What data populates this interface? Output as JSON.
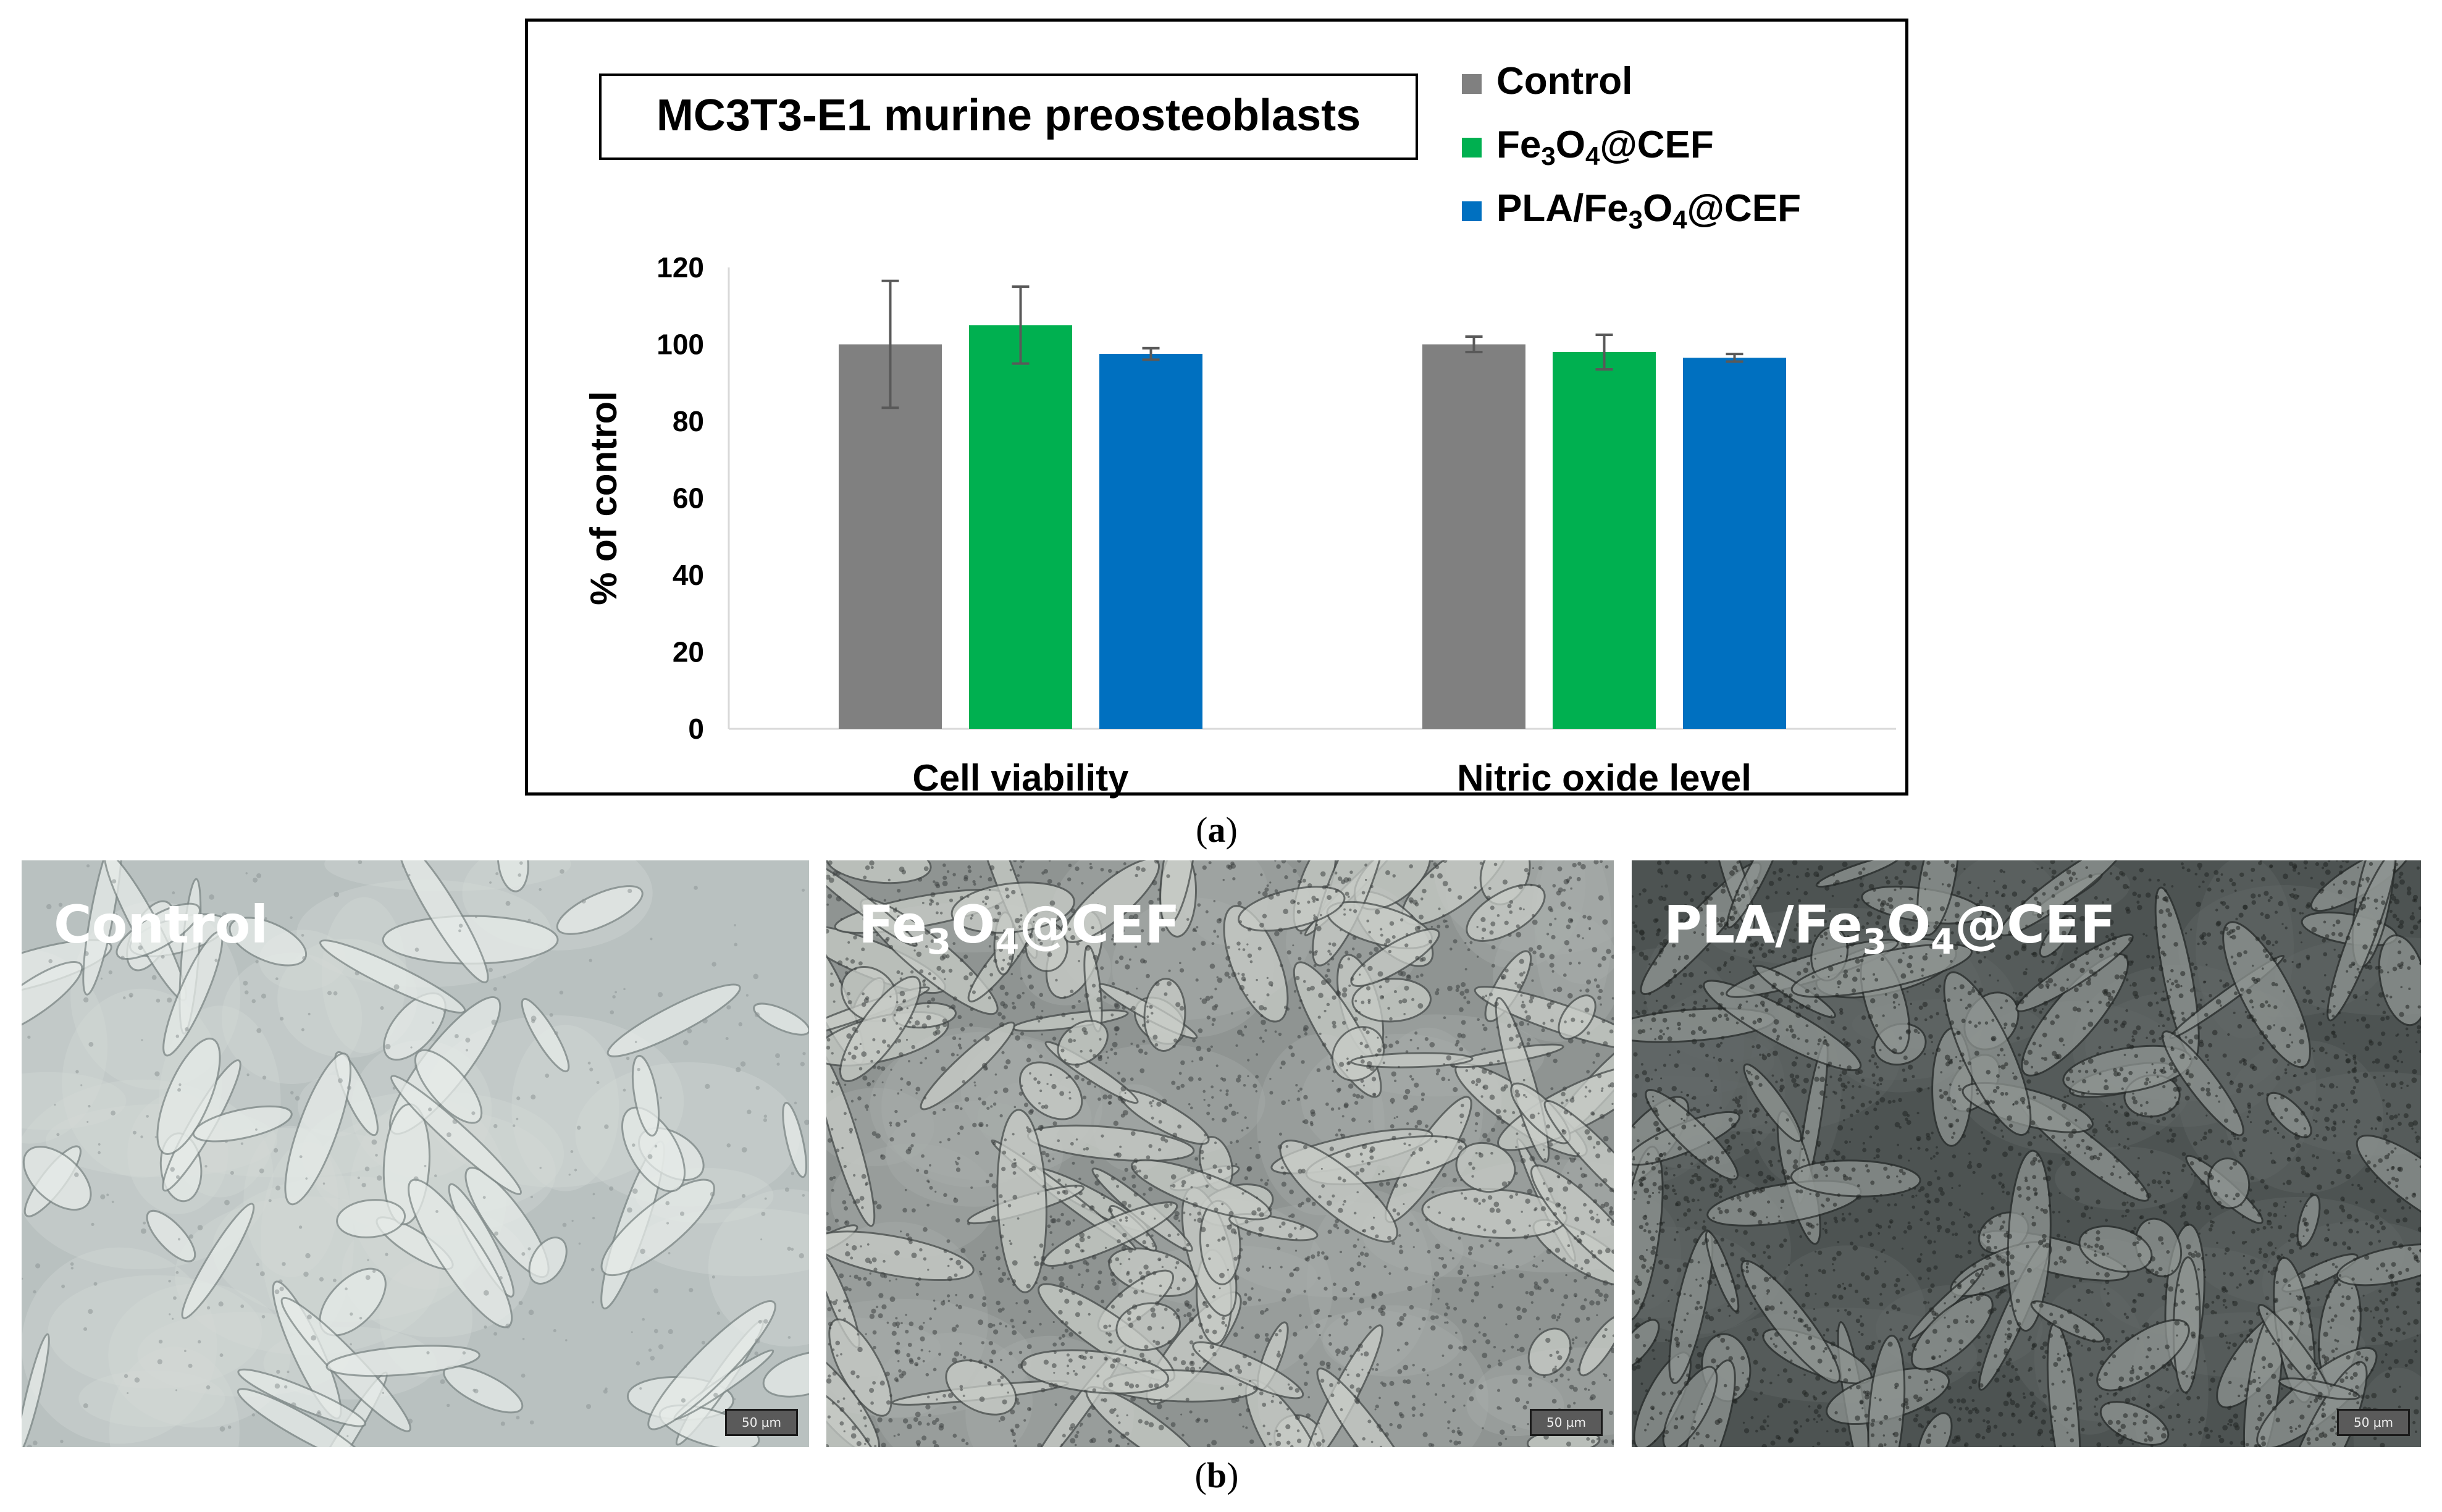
{
  "panel_a": {
    "caption_open": "(",
    "caption_letter": "a",
    "caption_close": ")"
  },
  "panel_b": {
    "caption_open": "(",
    "caption_letter": "b",
    "caption_close": ")",
    "images": [
      {
        "label_parts": [
          "Control"
        ],
        "scale_label": "50 µm",
        "tone": "light"
      },
      {
        "label_parts": [
          "Fe",
          "3",
          "O",
          "4",
          "@CEF"
        ],
        "scale_label": "50 µm",
        "tone": "medium"
      },
      {
        "label_parts": [
          "PLA/Fe",
          "3",
          "O",
          "4",
          "@CEF"
        ],
        "scale_label": "50 µm",
        "tone": "dark"
      }
    ]
  },
  "chart_data": {
    "type": "bar",
    "title": "MC3T3-E1 murine preosteoblasts",
    "ylabel": "% of control",
    "xlabel": "",
    "ylim": [
      0,
      120
    ],
    "yticks": [
      0,
      20,
      40,
      60,
      80,
      100,
      120
    ],
    "categories": [
      "Cell viability",
      "Nitric oxide level"
    ],
    "series": [
      {
        "name_parts": [
          "Control"
        ],
        "color": "#808080",
        "values": [
          100,
          100
        ],
        "errors": [
          16.5,
          2
        ]
      },
      {
        "name_parts": [
          "Fe",
          "3",
          "O",
          "4",
          "@CEF"
        ],
        "color": "#00b050",
        "values": [
          105,
          98
        ],
        "errors": [
          10,
          4.5
        ]
      },
      {
        "name_parts": [
          "PLA/Fe",
          "3",
          "O",
          "4",
          "@CEF"
        ],
        "color": "#0070c0",
        "values": [
          97.5,
          96.5
        ],
        "errors": [
          1.5,
          1
        ]
      }
    ],
    "legend_position": "top-right",
    "grid": false,
    "error_bar_color": "#595959"
  }
}
